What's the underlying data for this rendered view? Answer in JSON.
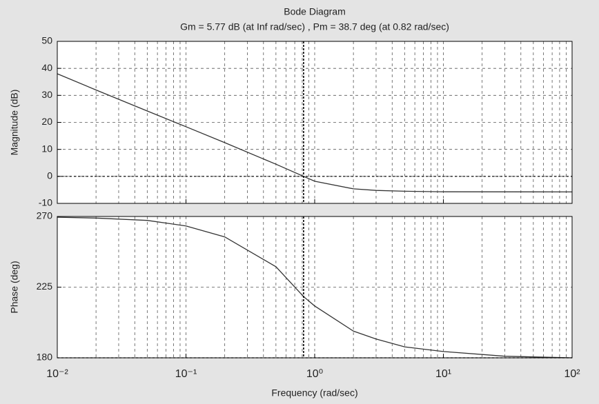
{
  "chart_data": [
    {
      "type": "line",
      "title": "Bode Diagram",
      "subtitle": "Gm = 5.77 dB (at Inf rad/sec) ,  Pm = 38.7 deg (at 0.82 rad/sec)",
      "ylabel": "Magnitude (dB)",
      "x": [
        0.01,
        0.02,
        0.05,
        0.1,
        0.2,
        0.5,
        0.82,
        1,
        2,
        3,
        5,
        10,
        100
      ],
      "values": [
        38,
        32,
        24.2,
        18.4,
        12.5,
        4.5,
        0,
        -1.8,
        -4.6,
        -5.2,
        -5.5,
        -5.7,
        -5.77
      ],
      "color": "#333333",
      "xscale": "log",
      "xlim": [
        0.01,
        100
      ],
      "xticks": [
        0.01,
        0.1,
        1,
        10,
        100
      ],
      "ylim": [
        -10,
        50
      ],
      "yticks": [
        -10,
        0,
        10,
        20,
        30,
        40,
        50
      ],
      "grid": true,
      "minor_grid": true,
      "reference_y": 0,
      "crossover_x": 0.82
    },
    {
      "type": "line",
      "ylabel": "Phase (deg)",
      "xlabel": "Frequency  (rad/sec)",
      "x": [
        0.01,
        0.02,
        0.05,
        0.1,
        0.2,
        0.5,
        0.82,
        1,
        2,
        3,
        5,
        10,
        30,
        100
      ],
      "values": [
        269.5,
        269,
        267.5,
        264,
        257,
        238,
        219,
        213,
        197,
        192,
        187,
        184,
        181,
        180
      ],
      "color": "#333333",
      "xscale": "log",
      "xlim": [
        0.01,
        100
      ],
      "xticks": [
        {
          "value": 0.01,
          "label": "10⁻²"
        },
        {
          "value": 0.1,
          "label": "10⁻¹"
        },
        {
          "value": 1,
          "label": "10⁰"
        },
        {
          "value": 10,
          "label": "10¹"
        },
        {
          "value": 100,
          "label": "10²"
        }
      ],
      "ylim": [
        180,
        270
      ],
      "yticks": [
        180,
        225,
        270
      ],
      "grid": true,
      "minor_grid": true,
      "reference_y": 180,
      "crossover_x": 0.82
    }
  ]
}
